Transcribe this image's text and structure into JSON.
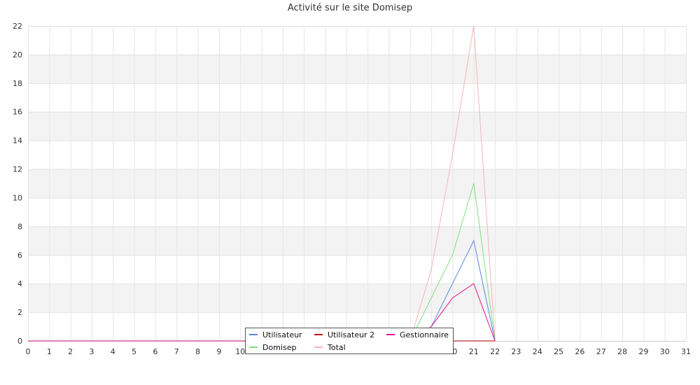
{
  "chart_data": {
    "type": "line",
    "title": "Activité sur le site Domisep",
    "xlabel": "",
    "ylabel": "",
    "x": [
      0,
      1,
      2,
      3,
      4,
      5,
      6,
      7,
      8,
      9,
      10,
      11,
      12,
      13,
      14,
      15,
      16,
      17,
      18,
      19,
      20,
      21,
      22,
      23,
      24,
      25,
      26,
      27,
      28,
      29,
      30,
      31
    ],
    "xlim": [
      0,
      31
    ],
    "ylim": [
      0,
      22
    ],
    "y_ticks": [
      0,
      2,
      4,
      6,
      8,
      10,
      12,
      14,
      16,
      18,
      20,
      22
    ],
    "grid": true,
    "legend_position": "bottom-center",
    "series": [
      {
        "name": "Utilisateur",
        "color": "#5b86e5",
        "values": [
          0,
          0,
          0,
          0,
          0,
          0,
          0,
          0,
          0,
          0,
          0,
          0,
          0,
          0,
          0,
          0,
          0,
          0,
          0,
          1,
          4,
          7,
          0,
          null,
          null,
          null,
          null,
          null,
          null,
          null,
          null,
          null
        ]
      },
      {
        "name": "Utilisateur 2",
        "color": "#c0101a",
        "values": [
          0,
          0,
          0,
          0,
          0,
          0,
          0,
          0,
          0,
          0,
          0,
          0,
          0,
          0,
          0,
          0,
          0,
          0,
          0,
          0,
          0,
          0,
          0,
          null,
          null,
          null,
          null,
          null,
          null,
          null,
          null,
          null
        ]
      },
      {
        "name": "Gestionnaire",
        "color": "#e8158a",
        "values": [
          0,
          0,
          0,
          0,
          0,
          0,
          0,
          0,
          0,
          0,
          0,
          0,
          0,
          0,
          0,
          0,
          0,
          0,
          0,
          1,
          3,
          4,
          0,
          null,
          null,
          null,
          null,
          null,
          null,
          null,
          null,
          null
        ]
      },
      {
        "name": "Domisep",
        "color": "#7ee07e",
        "values": [
          0,
          0,
          0,
          0,
          0,
          0,
          0,
          0,
          0,
          0,
          0,
          0,
          0,
          0,
          0,
          0,
          0,
          0,
          0,
          3,
          6,
          11,
          0,
          null,
          null,
          null,
          null,
          null,
          null,
          null,
          null,
          null
        ]
      },
      {
        "name": "Total",
        "color": "#f5b5b5",
        "values": [
          0,
          0,
          0,
          0,
          0,
          0,
          0,
          0,
          0,
          0,
          0,
          0,
          0,
          0,
          0,
          0,
          0,
          0,
          0,
          5,
          13,
          22,
          0,
          null,
          null,
          null,
          null,
          null,
          null,
          null,
          null,
          null
        ]
      }
    ]
  }
}
